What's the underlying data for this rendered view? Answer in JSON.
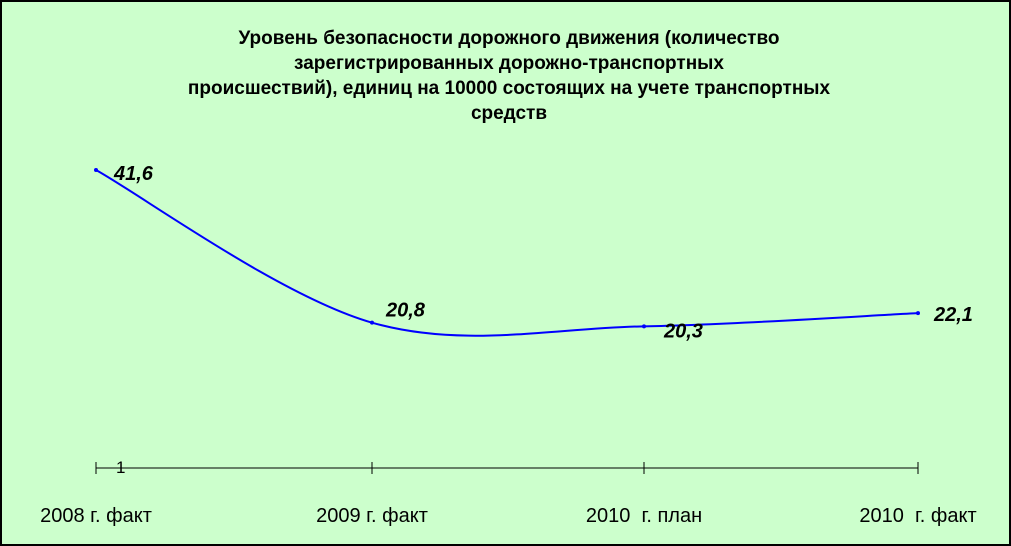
{
  "chart_data": {
    "type": "line",
    "title_lines": [
      "Уровень безопасности дорожного движения (количество",
      "зарегистрированных дорожно-транспортных",
      "происшествий), единиц на 10000 состоящих на учете транспортных",
      "средств"
    ],
    "categories": [
      "2008 г. факт",
      "2009 г. факт",
      "2010  г. план",
      "2010  г. факт"
    ],
    "series": [
      {
        "values": [
          41.6,
          20.8,
          20.3,
          22.1
        ],
        "color": "#0000ff"
      }
    ],
    "data_labels": [
      "41,6",
      "20,8",
      "20,3",
      "22,1"
    ],
    "axis_annotation": "1",
    "ylim": [
      0,
      60
    ],
    "grid": false,
    "legend": "none",
    "background": "#ccffcc",
    "axis_color": "#000000"
  }
}
